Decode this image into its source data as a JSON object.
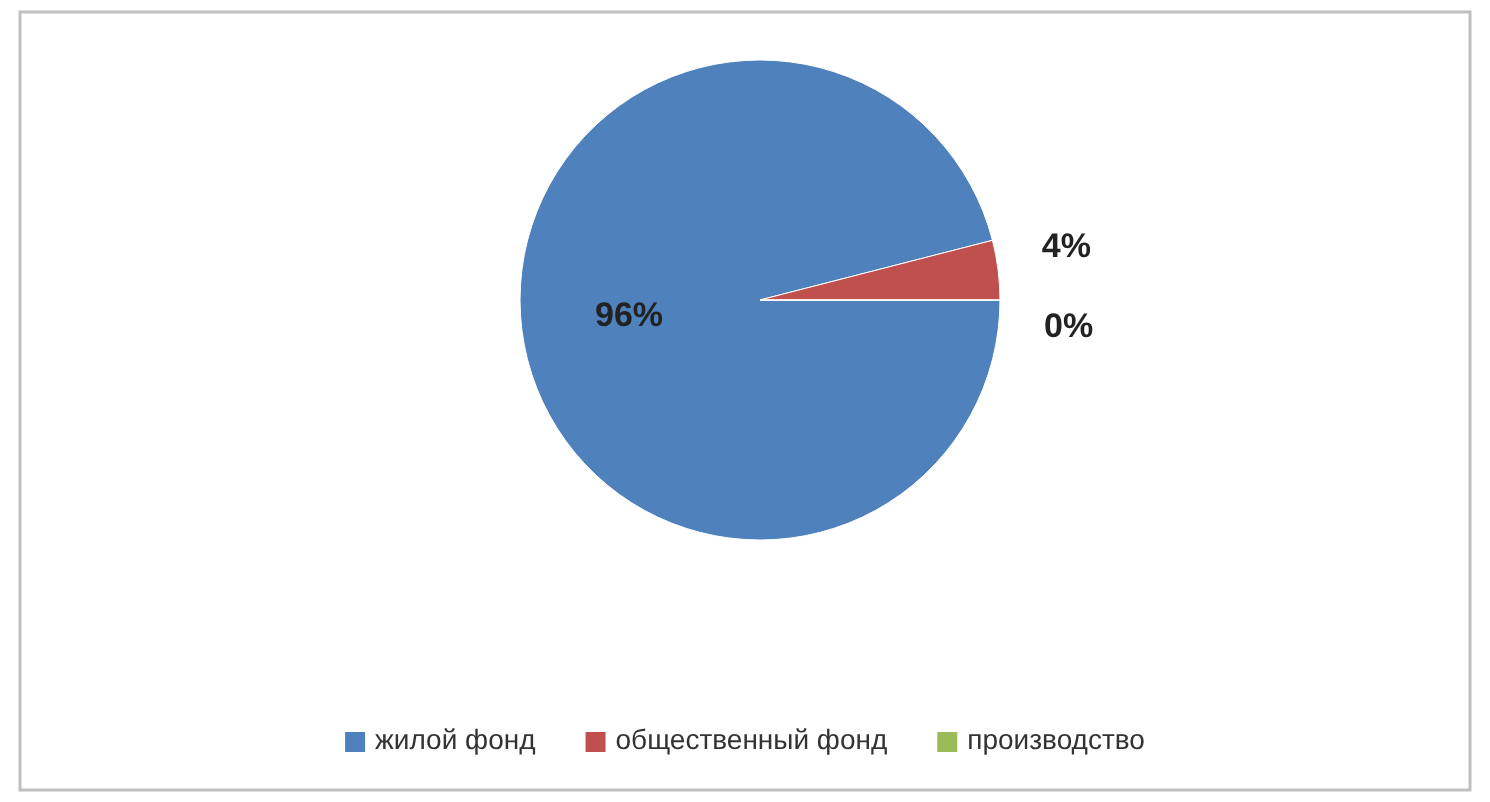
{
  "chart_data": {
    "type": "pie",
    "categories": [
      "жилой фонд",
      "общественный фонд",
      "производство"
    ],
    "values": [
      96,
      4,
      0
    ],
    "colors": [
      "#4f81bd",
      "#c0504d",
      "#9bbb59"
    ],
    "value_labels": [
      "96%",
      "4%",
      "0%"
    ],
    "legend": "bottom"
  }
}
